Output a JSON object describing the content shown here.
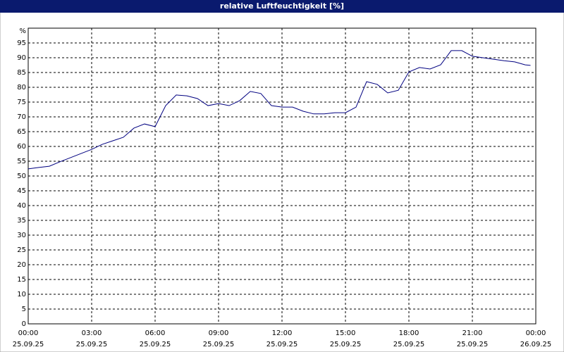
{
  "chart_data": {
    "type": "line",
    "title": "relative Luftfeuchtigkeit [%]",
    "y_label": "%",
    "x": [
      0,
      0.5,
      1,
      1.5,
      2,
      2.5,
      3,
      3.5,
      4,
      4.5,
      5,
      5.5,
      6,
      6.5,
      7,
      7.5,
      8,
      8.5,
      9,
      9.5,
      10,
      10.5,
      11,
      11.5,
      12,
      12.5,
      13,
      13.5,
      14,
      14.5,
      15,
      15.5,
      16,
      16.5,
      17,
      17.5,
      18,
      18.5,
      19,
      19.5,
      20,
      20.5,
      21,
      21.5,
      22,
      22.5,
      23,
      23.5,
      23.75
    ],
    "series": [
      {
        "name": "relative Luftfeuchtigkeit",
        "color": "#000080",
        "values": [
          52.4,
          52.9,
          53.3,
          54.8,
          56.2,
          57.6,
          59,
          60.7,
          61.9,
          63.1,
          66.2,
          67.6,
          66.7,
          73.8,
          77.4,
          77.1,
          76.2,
          73.8,
          74.5,
          73.8,
          75.5,
          78.6,
          77.9,
          73.8,
          73.3,
          73.3,
          71.9,
          71,
          71,
          71.4,
          71.4,
          73.3,
          81.9,
          81,
          78.1,
          79,
          85.2,
          86.7,
          86.2,
          87.6,
          92.4,
          92.4,
          90.5,
          90,
          89.5,
          89,
          88.6,
          87.6,
          87.4
        ]
      }
    ],
    "xlim": [
      0,
      24
    ],
    "xticks": [
      {
        "value": 0,
        "label": "00:00"
      },
      {
        "value": 3,
        "label": "03:00"
      },
      {
        "value": 6,
        "label": "06:00"
      },
      {
        "value": 9,
        "label": "09:00"
      },
      {
        "value": 12,
        "label": "12:00"
      },
      {
        "value": 15,
        "label": "15:00"
      },
      {
        "value": 18,
        "label": "18:00"
      },
      {
        "value": 21,
        "label": "21:00"
      },
      {
        "value": 24,
        "label": "00:00"
      }
    ],
    "xtick_dates": [
      "25.09.25",
      "25.09.25",
      "25.09.25",
      "25.09.25",
      "25.09.25",
      "25.09.25",
      "25.09.25",
      "25.09.25",
      "26.09.25"
    ],
    "ylim": [
      0,
      100
    ],
    "yticks": [
      0,
      5,
      10,
      15,
      20,
      25,
      30,
      35,
      40,
      45,
      50,
      55,
      60,
      65,
      70,
      75,
      80,
      85,
      90,
      95
    ],
    "grid": true
  }
}
